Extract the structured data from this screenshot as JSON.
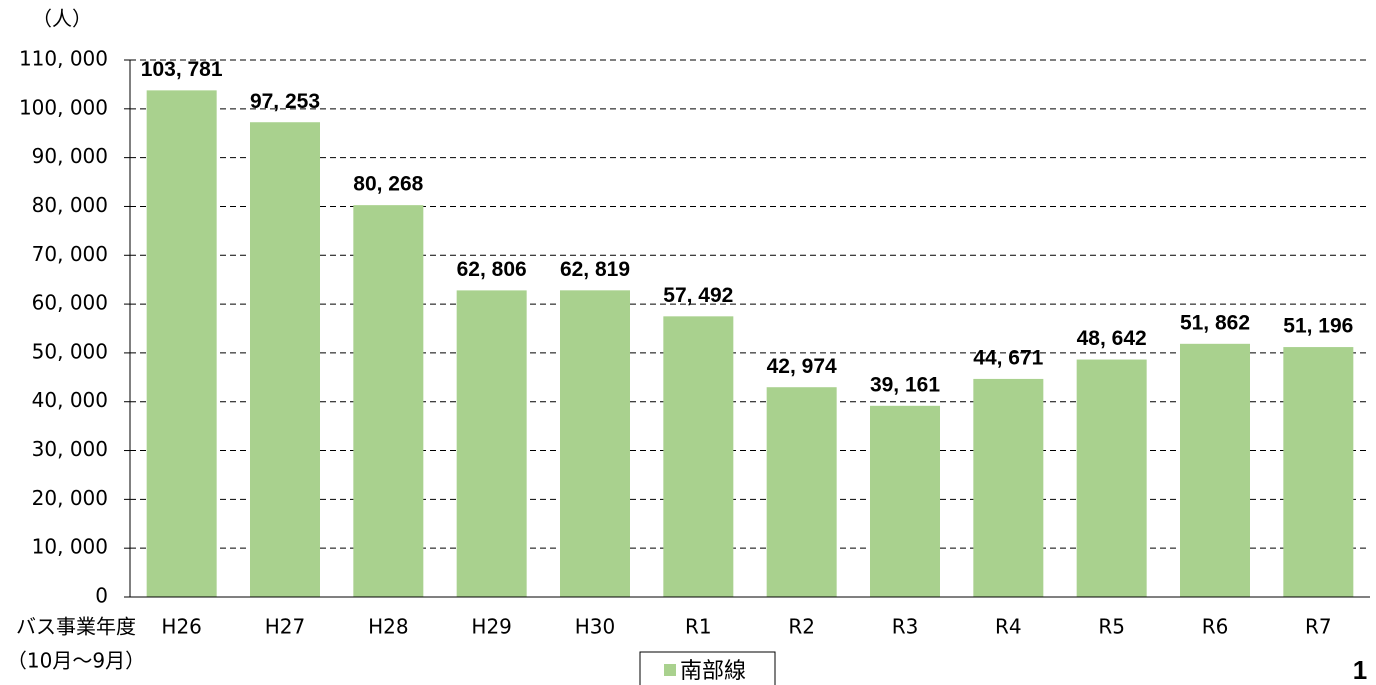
{
  "chart_data": {
    "type": "bar",
    "y_unit": "（人）",
    "x_label": [
      "バス事業年度",
      "（10月～9月）"
    ],
    "categories": [
      "H26",
      "H27",
      "H28",
      "H29",
      "H30",
      "R1",
      "R2",
      "R3",
      "R4",
      "R5",
      "R6",
      "R7"
    ],
    "series": [
      {
        "name": "南部線",
        "color": "#a9d18e",
        "values": [
          103781,
          97253,
          80268,
          62806,
          62819,
          57492,
          42974,
          39161,
          44671,
          48642,
          51862,
          51196
        ],
        "value_labels": [
          "103, 781",
          "97, 253",
          "80, 268",
          "62, 806",
          "62, 819",
          "57, 492",
          "42, 974",
          "39, 161",
          "44, 671",
          "48, 642",
          "51, 862",
          "51, 196"
        ]
      }
    ],
    "ylim": [
      0,
      110000
    ],
    "yticks": [
      0,
      {
        "value": 10000,
        "label": "10, 000"
      },
      {
        "value": 20000,
        "label": "20, 000"
      },
      {
        "value": 30000,
        "label": "30, 000"
      },
      {
        "value": 40000,
        "label": "40, 000"
      },
      {
        "value": 50000,
        "label": "50, 000"
      },
      {
        "value": 60000,
        "label": "60, 000"
      },
      {
        "value": 70000,
        "label": "70, 000"
      },
      {
        "value": 80000,
        "label": "80, 000"
      },
      {
        "value": 90000,
        "label": "90, 000"
      },
      {
        "value": 100000,
        "label": "100, 000"
      },
      {
        "value": 110000,
        "label": "110, 000"
      }
    ],
    "grid": true,
    "legend": "bottom"
  },
  "page_number": "1"
}
